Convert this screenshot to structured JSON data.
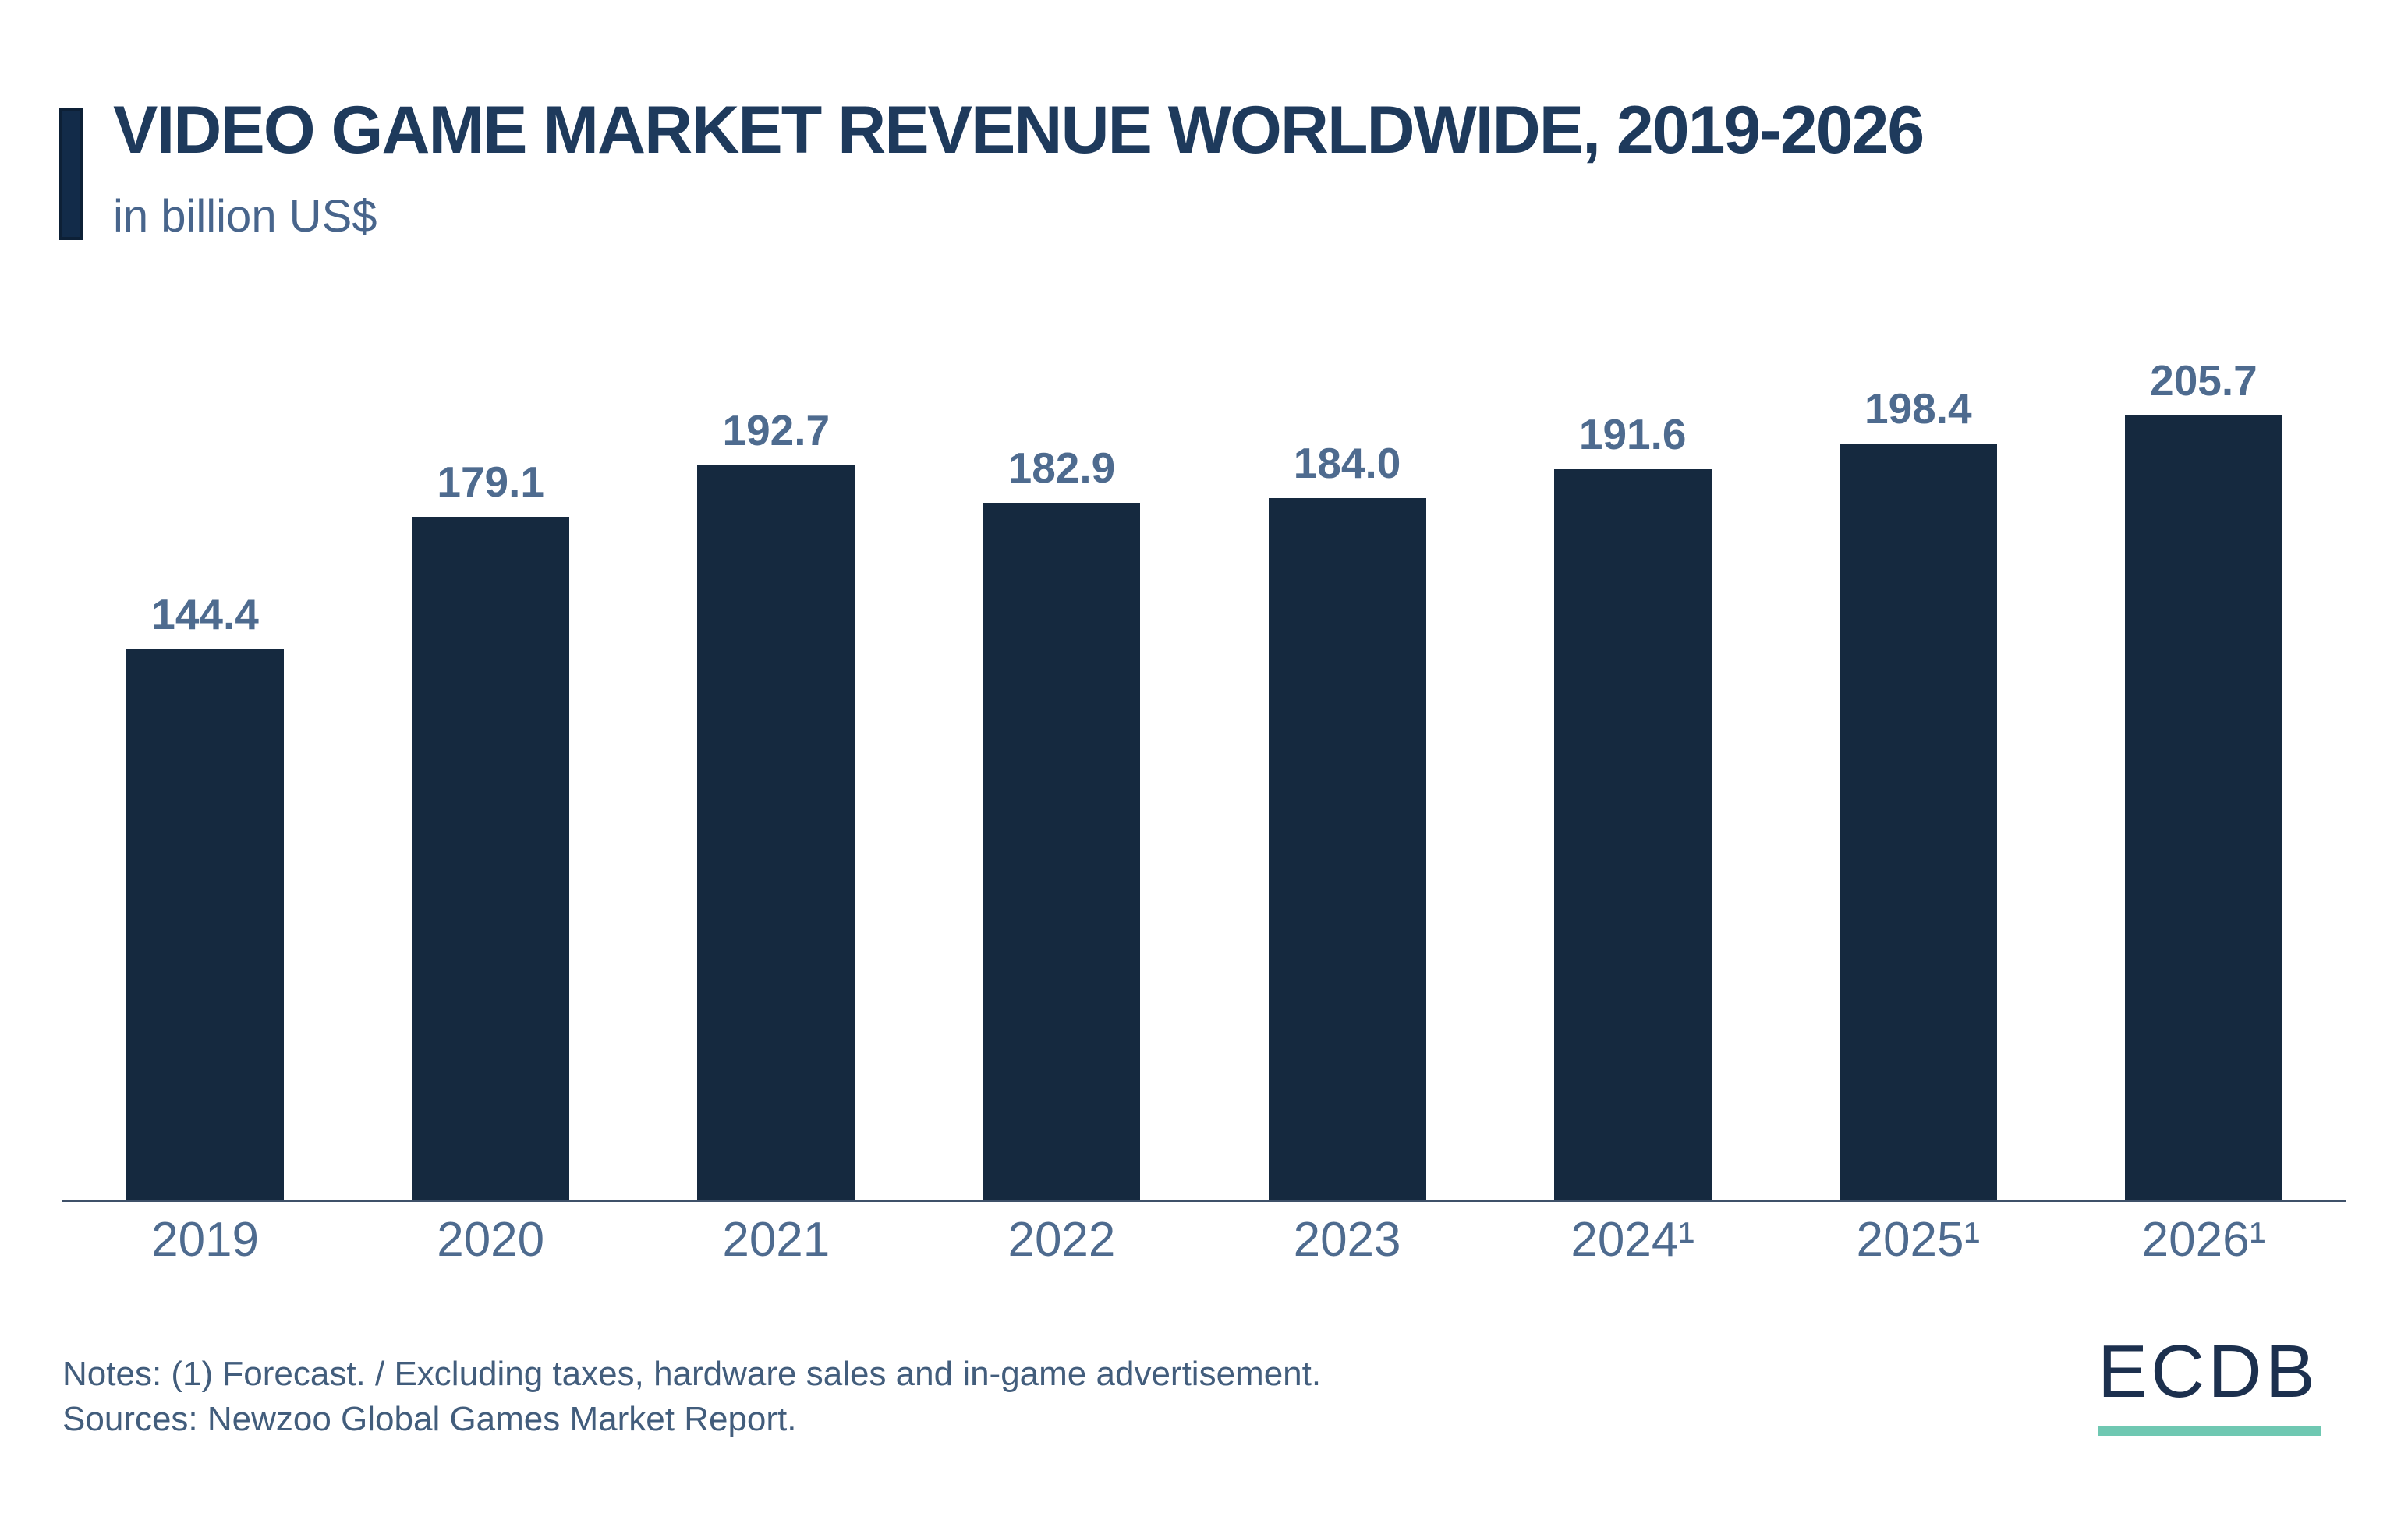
{
  "header": {
    "title": "VIDEO GAME MARKET REVENUE WORLDWIDE, 2019-2026",
    "subtitle": "in billion US$"
  },
  "chart_data": {
    "type": "bar",
    "title": "VIDEO GAME MARKET REVENUE WORLDWIDE, 2019-2026",
    "subtitle": "in billion US$",
    "categories": [
      "2019",
      "2020",
      "2021",
      "2022",
      "2023",
      "2024¹",
      "2025¹",
      "2026¹"
    ],
    "values": [
      144.4,
      179.1,
      192.7,
      182.9,
      184.0,
      191.6,
      198.4,
      205.7
    ],
    "value_labels": [
      "144.4",
      "179.1",
      "192.7",
      "182.9",
      "184.0",
      "191.6",
      "198.4",
      "205.7"
    ],
    "xlabel": "",
    "ylabel": "in billion US$",
    "ylim": [
      0,
      220
    ],
    "grid": "off",
    "legend": "none",
    "forecast_note_marker": "¹",
    "forecast_years": [
      "2024",
      "2025",
      "2026"
    ]
  },
  "footer": {
    "notes_line1": "Notes: (1) Forecast. / Excluding taxes, hardware sales and in-game advertisement.",
    "notes_line2": "Sources: Newzoo Global Games Market Report.",
    "logo_text": "ECDB"
  },
  "colors": {
    "bar": "#15293F",
    "accent": "#122B49",
    "accent_border": "#0D2036",
    "title": "#1E3A5C",
    "label": "#4E6B8F",
    "subtitle": "#48658C",
    "notes": "#425D7C",
    "axis": "#3F5169",
    "logo_navy": "#1C304E",
    "logo_teal": "#6FC8B2",
    "background": "#FFFFFF"
  }
}
